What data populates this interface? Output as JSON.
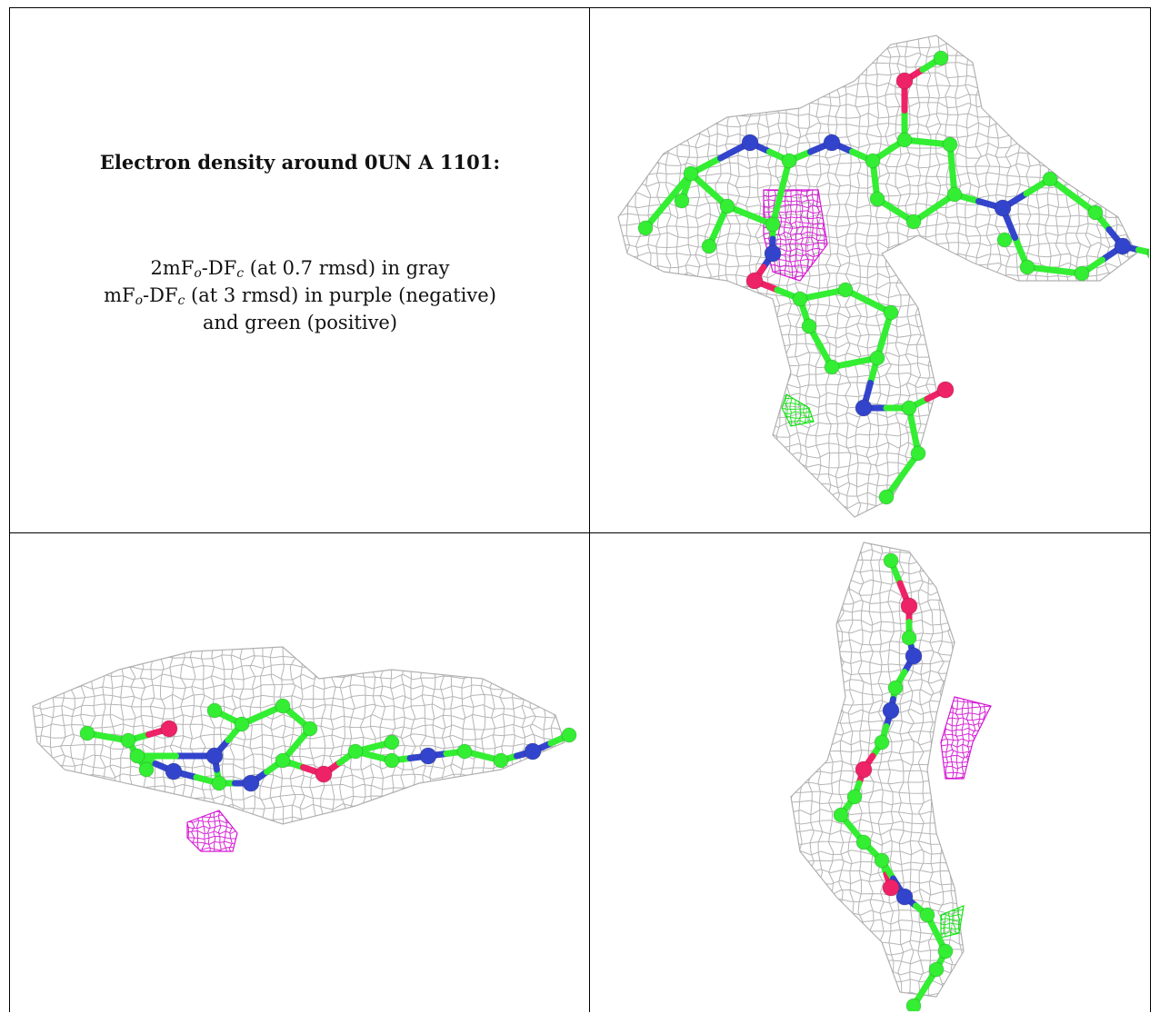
{
  "caption": {
    "title": "Electron density around 0UN A 1101:",
    "line1": {
      "a": "2mF",
      "a_sub": "o",
      "b": "-DF",
      "b_sub": "c",
      "rest": " (at 0.7 rmsd) in gray"
    },
    "line2": {
      "a": "mF",
      "a_sub": "o",
      "b": "-DF",
      "b_sub": "c",
      "rest": " (at 3 rmsd) in purple (negative)"
    },
    "line3": "and green (positive)"
  },
  "colors": {
    "mesh_2fo": "#a8a8a8",
    "mesh_negative": "#d000d0",
    "mesh_positive": "#00e000",
    "carbon": "#33ee33",
    "nitrogen": "#3344cc",
    "oxygen": "#ee2266"
  },
  "panels": [
    "view-top-right",
    "view-bottom-left",
    "view-bottom-right"
  ]
}
